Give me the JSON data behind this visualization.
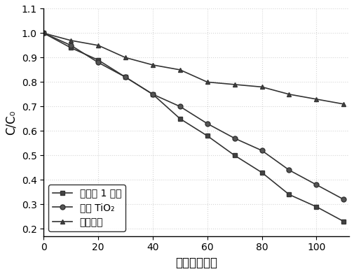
{
  "x": [
    0,
    10,
    20,
    30,
    40,
    50,
    60,
    70,
    80,
    90,
    100,
    110
  ],
  "series1_y": [
    1.0,
    0.94,
    0.89,
    0.82,
    0.75,
    0.65,
    0.58,
    0.5,
    0.43,
    0.34,
    0.29,
    0.23
  ],
  "series2_y": [
    1.0,
    0.95,
    0.88,
    0.82,
    0.75,
    0.7,
    0.63,
    0.57,
    0.52,
    0.44,
    0.38,
    0.32
  ],
  "series3_y": [
    1.0,
    0.97,
    0.95,
    0.9,
    0.87,
    0.85,
    0.8,
    0.79,
    0.78,
    0.75,
    0.73,
    0.71
  ],
  "series1_label": "实施例 1 样品",
  "series2_label": "市售 TiO₂",
  "series3_label": "空白对照",
  "xlabel": "时间（分钟）",
  "ylabel": "C/C₀",
  "xlim": [
    0,
    112
  ],
  "ylim": [
    0.17,
    1.1
  ],
  "xticks": [
    0,
    20,
    40,
    60,
    80,
    100
  ],
  "yticks": [
    0.2,
    0.3,
    0.4,
    0.5,
    0.6,
    0.7,
    0.8,
    0.9,
    1.0,
    1.1
  ],
  "line_color": "#333333",
  "background_color": "#ffffff",
  "marker1": "s",
  "marker2": "o",
  "marker3": "^",
  "markersize": 5,
  "linewidth": 1.2,
  "legend_loc": "lower left",
  "grid_alpha": 0.6,
  "grid_color": "#bbbbbb",
  "grid_linestyle": ":"
}
